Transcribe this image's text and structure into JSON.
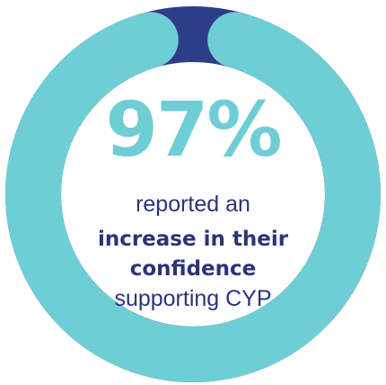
{
  "chart_data": {
    "type": "pie",
    "variant": "donut",
    "values": [
      97,
      3
    ],
    "colors": {
      "primary": "#6fcdd6",
      "remainder": "#2e3d8a",
      "text_dark": "#2b3478",
      "background": "#ffffff"
    }
  },
  "stat": {
    "percent": "97%",
    "line1": "reported an",
    "line2": "increase in their",
    "line3": "confidence",
    "line4": "supporting CYP"
  }
}
